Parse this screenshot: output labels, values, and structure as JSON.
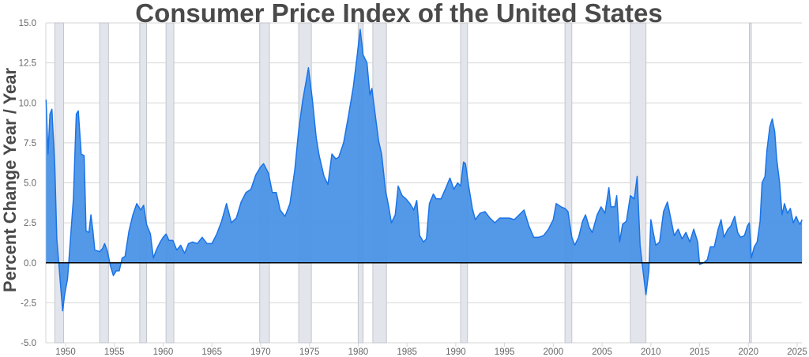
{
  "chart_data": {
    "type": "area",
    "title": "Consumer Price Index of the United States",
    "xlabel": "",
    "ylabel": "Percent Change Year / Year",
    "xlim": [
      1948,
      2025.6
    ],
    "ylim": [
      -5,
      15
    ],
    "x_ticks": [
      "1950",
      "1955",
      "1960",
      "1965",
      "1970",
      "1975",
      "1980",
      "1985",
      "1990",
      "1995",
      "2000",
      "2005",
      "2010",
      "2015",
      "2020",
      "2025"
    ],
    "y_ticks": [
      "15.0",
      "12.5",
      "10.0",
      "7.5",
      "5.0",
      "2.5",
      "0.0",
      "-2.5",
      "-5.0"
    ],
    "grid": true,
    "legend": "none",
    "colors": {
      "fill": "#4a94e6",
      "line": "#1a73e8",
      "recession": "#e2e5ec",
      "recession_edge": "#c4c6cb",
      "zero_line": "#000000",
      "grid": "#d6d6d6"
    },
    "recessions": [
      [
        1948.9,
        1949.8
      ],
      [
        1953.5,
        1954.4
      ],
      [
        1957.6,
        1958.3
      ],
      [
        1960.3,
        1961.1
      ],
      [
        1969.9,
        1970.9
      ],
      [
        1973.9,
        1975.2
      ],
      [
        1980.0,
        1980.5
      ],
      [
        1981.5,
        1982.9
      ],
      [
        1990.5,
        1991.2
      ],
      [
        2001.2,
        2001.9
      ],
      [
        2007.9,
        2009.5
      ],
      [
        2020.1,
        2020.3
      ]
    ],
    "series": [
      {
        "x": [
          1948.0,
          1948.2,
          1948.4,
          1948.6,
          1948.9,
          1949.1,
          1949.3,
          1949.5,
          1949.7,
          1949.9,
          1950.2,
          1950.5,
          1950.8,
          1951.0,
          1951.1,
          1951.3,
          1951.6,
          1951.9,
          1952.1,
          1952.4,
          1952.6,
          1952.8,
          1953.0,
          1953.5,
          1953.8,
          1954.0,
          1954.3,
          1954.6,
          1954.9,
          1955.2,
          1955.5,
          1955.8,
          1956.1,
          1956.5,
          1956.9,
          1957.3,
          1957.7,
          1958.0,
          1958.3,
          1958.7,
          1959.0,
          1959.3,
          1959.7,
          1960.0,
          1960.3,
          1960.6,
          1961.0,
          1961.4,
          1961.8,
          1962.2,
          1962.6,
          1963.0,
          1963.5,
          1964.0,
          1964.5,
          1965.0,
          1965.5,
          1966.0,
          1966.5,
          1967.0,
          1967.5,
          1968.0,
          1968.5,
          1969.0,
          1969.5,
          1970.0,
          1970.3,
          1970.8,
          1971.2,
          1971.6,
          1972.0,
          1972.5,
          1973.0,
          1973.5,
          1973.9,
          1974.3,
          1974.7,
          1974.9,
          1975.3,
          1975.7,
          1976.0,
          1976.5,
          1976.9,
          1977.3,
          1977.7,
          1978.0,
          1978.5,
          1979.0,
          1979.5,
          1979.9,
          1980.2,
          1980.5,
          1980.9,
          1981.2,
          1981.4,
          1981.8,
          1982.1,
          1982.4,
          1982.8,
          1983.1,
          1983.4,
          1983.8,
          1984.1,
          1984.5,
          1984.9,
          1985.3,
          1985.7,
          1986.0,
          1986.3,
          1986.7,
          1987.0,
          1987.3,
          1987.7,
          1988.0,
          1988.5,
          1989.0,
          1989.4,
          1989.8,
          1990.2,
          1990.5,
          1990.8,
          1991.0,
          1991.3,
          1991.7,
          1992.0,
          1992.5,
          1993.0,
          1993.5,
          1994.0,
          1994.5,
          1995.0,
          1995.5,
          1996.0,
          1996.5,
          1997.0,
          1997.5,
          1998.0,
          1998.5,
          1999.0,
          1999.5,
          2000.0,
          2000.3,
          2000.8,
          2001.2,
          2001.5,
          2001.9,
          2002.2,
          2002.6,
          2003.0,
          2003.3,
          2003.7,
          2004.0,
          2004.5,
          2004.9,
          2005.3,
          2005.7,
          2005.9,
          2006.3,
          2006.5,
          2006.8,
          2007.1,
          2007.5,
          2007.9,
          2008.3,
          2008.6,
          2008.9,
          2009.2,
          2009.5,
          2009.8,
          2010.0,
          2010.5,
          2010.9,
          2011.3,
          2011.7,
          2012.0,
          2012.4,
          2012.8,
          2013.2,
          2013.6,
          2014.0,
          2014.4,
          2014.8,
          2015.0,
          2015.4,
          2015.8,
          2016.1,
          2016.5,
          2016.9,
          2017.2,
          2017.5,
          2017.9,
          2018.2,
          2018.6,
          2018.9,
          2019.2,
          2019.6,
          2019.9,
          2020.1,
          2020.3,
          2020.6,
          2020.9,
          2021.2,
          2021.4,
          2021.7,
          2021.9,
          2022.2,
          2022.45,
          2022.7,
          2022.9,
          2023.2,
          2023.45,
          2023.7,
          2024.0,
          2024.3,
          2024.6,
          2024.9,
          2025.1,
          2025.3,
          2025.5
        ],
        "y": [
          10.2,
          6.8,
          9.3,
          9.6,
          6.0,
          1.5,
          0.0,
          -1.5,
          -3.0,
          -2.0,
          -1.0,
          1.5,
          4.0,
          7.5,
          9.3,
          9.5,
          6.8,
          6.7,
          2.0,
          1.9,
          3.0,
          2.0,
          0.8,
          0.7,
          0.9,
          1.2,
          0.7,
          -0.2,
          -0.8,
          -0.5,
          -0.5,
          0.3,
          0.4,
          2.0,
          3.0,
          3.7,
          3.3,
          3.6,
          2.4,
          1.8,
          0.3,
          0.8,
          1.3,
          1.6,
          1.8,
          1.4,
          1.4,
          0.8,
          1.1,
          0.6,
          1.2,
          1.3,
          1.2,
          1.6,
          1.2,
          1.2,
          1.8,
          2.6,
          3.7,
          2.5,
          2.8,
          3.8,
          4.4,
          4.6,
          5.5,
          6.0,
          6.2,
          5.6,
          4.4,
          4.4,
          3.3,
          2.9,
          3.7,
          5.8,
          8.3,
          10.1,
          11.5,
          12.2,
          10.2,
          7.8,
          6.7,
          5.4,
          4.9,
          6.8,
          6.5,
          6.6,
          7.5,
          9.2,
          11.0,
          13.0,
          14.6,
          13.0,
          12.5,
          10.5,
          10.9,
          9.0,
          7.6,
          6.8,
          4.5,
          3.6,
          2.5,
          3.0,
          4.8,
          4.2,
          4.0,
          3.7,
          3.3,
          3.9,
          1.7,
          1.3,
          1.5,
          3.7,
          4.3,
          4.0,
          4.0,
          4.7,
          5.3,
          4.6,
          5.0,
          4.8,
          6.3,
          6.2,
          4.9,
          3.4,
          2.7,
          3.1,
          3.2,
          2.8,
          2.5,
          2.8,
          2.8,
          2.8,
          2.7,
          3.0,
          3.3,
          2.3,
          1.6,
          1.6,
          1.7,
          2.1,
          2.7,
          3.7,
          3.5,
          3.4,
          3.2,
          1.6,
          1.1,
          1.6,
          2.6,
          3.0,
          2.2,
          1.9,
          3.0,
          3.5,
          3.1,
          4.7,
          3.5,
          3.5,
          4.2,
          1.3,
          2.4,
          2.6,
          4.2,
          4.0,
          5.4,
          1.1,
          -0.5,
          -2.0,
          -0.5,
          2.7,
          1.1,
          1.3,
          3.2,
          3.8,
          2.9,
          1.7,
          2.1,
          1.5,
          1.9,
          1.3,
          2.1,
          1.3,
          -0.1,
          0.0,
          0.2,
          1.0,
          1.0,
          2.1,
          2.7,
          1.6,
          2.1,
          2.3,
          2.9,
          1.9,
          1.6,
          1.7,
          2.3,
          2.5,
          0.3,
          1.0,
          1.3,
          2.6,
          5.0,
          5.4,
          7.0,
          8.5,
          9.0,
          8.2,
          6.5,
          5.0,
          3.0,
          3.7,
          3.1,
          3.4,
          2.5,
          2.9,
          2.6,
          2.4,
          2.7
        ]
      }
    ]
  }
}
